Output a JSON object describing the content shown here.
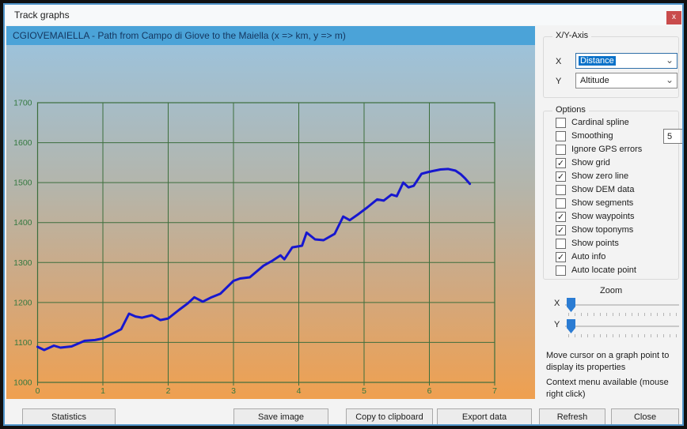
{
  "window": {
    "title": "Track graphs",
    "close_glyph": "x"
  },
  "chart_header": {
    "title": "CGIOVEMAIELLA - Path from Campo di Giove to the Maiella (x => km, y => m)"
  },
  "chart_data": {
    "type": "line",
    "title": "CGIOVEMAIELLA - Path from Campo di Giove to the Maiella",
    "xlabel": "km",
    "ylabel": "m",
    "xlim": [
      0,
      7
    ],
    "ylim": [
      1000,
      1700
    ],
    "x_ticks": [
      0,
      1,
      2,
      3,
      4,
      5,
      6,
      7
    ],
    "y_ticks": [
      1000,
      1100,
      1200,
      1300,
      1400,
      1500,
      1600,
      1700
    ],
    "grid": true,
    "legend": "none",
    "line_color": "#1717cf",
    "grid_color": "#3c6e3c",
    "tick_label_color": "#35793f",
    "points": [
      [
        0.0,
        1089
      ],
      [
        0.1,
        1081
      ],
      [
        0.25,
        1092
      ],
      [
        0.35,
        1087
      ],
      [
        0.52,
        1090
      ],
      [
        0.72,
        1104
      ],
      [
        0.88,
        1106
      ],
      [
        1.0,
        1110
      ],
      [
        1.16,
        1123
      ],
      [
        1.28,
        1133
      ],
      [
        1.4,
        1172
      ],
      [
        1.5,
        1165
      ],
      [
        1.6,
        1162
      ],
      [
        1.75,
        1168
      ],
      [
        1.88,
        1156
      ],
      [
        2.0,
        1160
      ],
      [
        2.17,
        1182
      ],
      [
        2.3,
        1198
      ],
      [
        2.4,
        1213
      ],
      [
        2.53,
        1202
      ],
      [
        2.65,
        1212
      ],
      [
        2.8,
        1222
      ],
      [
        3.0,
        1254
      ],
      [
        3.1,
        1260
      ],
      [
        3.25,
        1263
      ],
      [
        3.46,
        1292
      ],
      [
        3.6,
        1305
      ],
      [
        3.72,
        1318
      ],
      [
        3.78,
        1308
      ],
      [
        3.9,
        1338
      ],
      [
        4.05,
        1342
      ],
      [
        4.12,
        1375
      ],
      [
        4.25,
        1358
      ],
      [
        4.38,
        1356
      ],
      [
        4.55,
        1372
      ],
      [
        4.68,
        1415
      ],
      [
        4.78,
        1406
      ],
      [
        4.92,
        1422
      ],
      [
        5.05,
        1438
      ],
      [
        5.2,
        1458
      ],
      [
        5.3,
        1455
      ],
      [
        5.42,
        1470
      ],
      [
        5.5,
        1466
      ],
      [
        5.6,
        1500
      ],
      [
        5.68,
        1488
      ],
      [
        5.76,
        1492
      ],
      [
        5.88,
        1522
      ],
      [
        5.97,
        1526
      ],
      [
        6.05,
        1529
      ],
      [
        6.17,
        1533
      ],
      [
        6.29,
        1534
      ],
      [
        6.4,
        1530
      ],
      [
        6.48,
        1521
      ],
      [
        6.55,
        1510
      ],
      [
        6.62,
        1497
      ]
    ]
  },
  "axis_panel": {
    "title": "X/Y-Axis",
    "x_label": "X",
    "x_value": "Distance",
    "y_label": "Y",
    "y_value": "Altitude"
  },
  "options_panel": {
    "title": "Options",
    "smoothing_value": "5",
    "items": [
      {
        "label": "Cardinal spline",
        "checked": false,
        "spinner": false
      },
      {
        "label": "Smoothing",
        "checked": false,
        "spinner": true
      },
      {
        "label": "Ignore GPS errors",
        "checked": false,
        "spinner": false
      },
      {
        "label": "Show grid",
        "checked": true,
        "spinner": false
      },
      {
        "label": "Show zero line",
        "checked": true,
        "spinner": false
      },
      {
        "label": "Show DEM data",
        "checked": false,
        "spinner": false
      },
      {
        "label": "Show segments",
        "checked": false,
        "spinner": false
      },
      {
        "label": "Show waypoints",
        "checked": true,
        "spinner": false
      },
      {
        "label": "Show toponyms",
        "checked": true,
        "spinner": false
      },
      {
        "label": "Show points",
        "checked": false,
        "spinner": false
      },
      {
        "label": "Auto info",
        "checked": true,
        "spinner": false
      },
      {
        "label": "Auto locate point",
        "checked": false,
        "spinner": false
      }
    ]
  },
  "zoom_panel": {
    "title": "Zoom",
    "x_label": "X",
    "y_label": "Y"
  },
  "hints": {
    "hint1": "Move cursor on a graph point to display its properties",
    "hint2": "Context menu available (mouse right click)"
  },
  "buttons": [
    {
      "label": "Statistics"
    },
    {
      "label": "Save image"
    },
    {
      "label": "Copy to clipboard"
    },
    {
      "label": "Export data"
    },
    {
      "label": "Refresh"
    },
    {
      "label": "Close"
    }
  ]
}
